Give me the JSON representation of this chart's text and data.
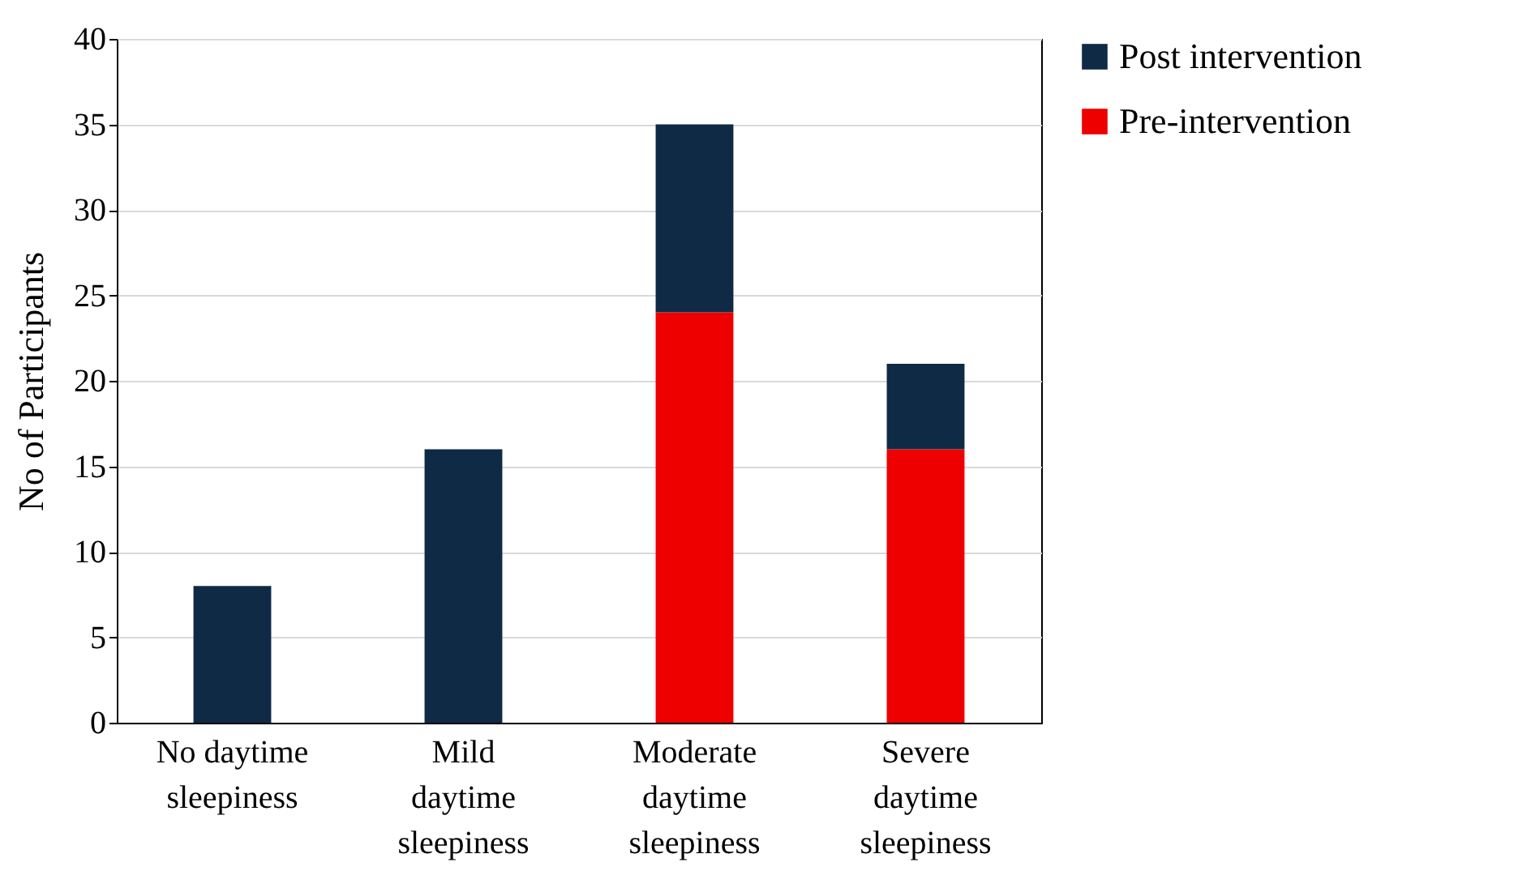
{
  "chart_data": {
    "type": "bar",
    "stacked": true,
    "ylabel": "No of Participants",
    "categories": [
      "No daytime sleepiness",
      "Mild daytime sleepiness",
      "Moderate daytime sleepiness",
      "Severe daytime sleepiness"
    ],
    "series": [
      {
        "name": "Pre-intervention",
        "color": "#ee0000",
        "values": [
          0,
          0,
          24,
          16
        ]
      },
      {
        "name": "Post intervention",
        "color": "#0f2a44",
        "values": [
          8,
          16,
          11,
          5
        ]
      }
    ],
    "ylim": [
      0,
      40
    ],
    "yticks": [
      0,
      5,
      10,
      15,
      20,
      25,
      30,
      35,
      40
    ],
    "grid": "y",
    "legend": "right"
  }
}
